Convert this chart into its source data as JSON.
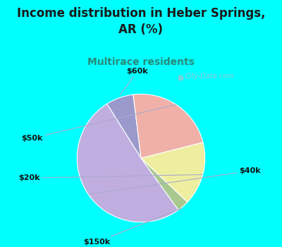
{
  "title": "Income distribution in Heber Springs,\nAR (%)",
  "subtitle": "Multirace residents",
  "title_color": "#1a1a1a",
  "subtitle_color": "#2a8a7a",
  "background_color": "#00FFFF",
  "chart_bg_start": "#e8f5e8",
  "chart_bg_end": "#f5f5ff",
  "labels": [
    "$60k",
    "$40k",
    "$150k",
    "$20k",
    "$50k"
  ],
  "sizes": [
    7,
    51,
    3,
    16,
    23
  ],
  "colors": [
    "#9999cc",
    "#c0aee0",
    "#a8c890",
    "#eeeea0",
    "#f0b0a8"
  ],
  "start_angle": 97,
  "watermark": "City-Data.com"
}
